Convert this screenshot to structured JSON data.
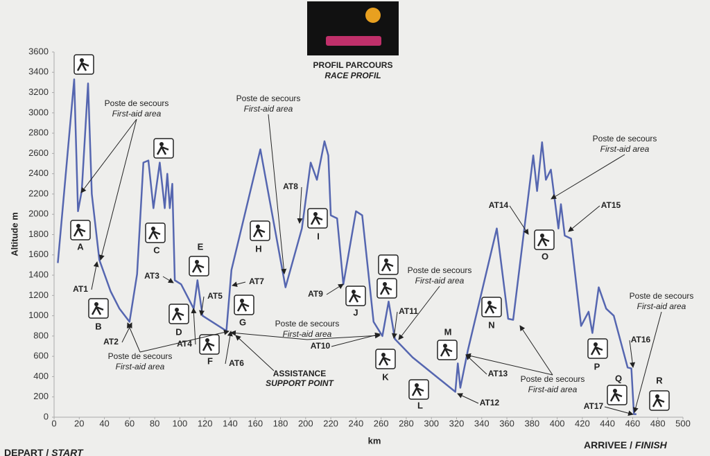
{
  "chart_data": {
    "type": "line",
    "title": "PROFIL PARCOURS",
    "subtitle": "RACE PROFIL",
    "x_label": "km",
    "y_label": "Altitude m",
    "start_label": {
      "fr": "DEPART /",
      "en": "START"
    },
    "finish_label": {
      "fr": "ARRIVEE /",
      "en": "FINISH"
    },
    "color": "#5566b0",
    "x": [
      3,
      16,
      19,
      22,
      27,
      30,
      36,
      45,
      52,
      60,
      66,
      71,
      75,
      79,
      84,
      88,
      90,
      92,
      94,
      96,
      101,
      111,
      114,
      118,
      137,
      141,
      164,
      184,
      197,
      204,
      209,
      215,
      218,
      220,
      225,
      230,
      240,
      245,
      254,
      261,
      266,
      271,
      285,
      302,
      319,
      321,
      323,
      329,
      352,
      361,
      365,
      381,
      384,
      388,
      391,
      395,
      401,
      403,
      406,
      411,
      419,
      425,
      428,
      433,
      439,
      445,
      456,
      459,
      461,
      463
    ],
    "values": [
      1520,
      3330,
      2030,
      2230,
      3290,
      2200,
      1550,
      1240,
      1070,
      940,
      1410,
      2510,
      2530,
      2060,
      2510,
      2060,
      2400,
      2060,
      2300,
      1350,
      1310,
      1070,
      1350,
      1000,
      850,
      1450,
      2640,
      1280,
      1860,
      2510,
      2340,
      2720,
      2580,
      1990,
      1960,
      1310,
      2030,
      1990,
      940,
      800,
      1140,
      770,
      590,
      420,
      250,
      530,
      290,
      660,
      1860,
      970,
      960,
      2580,
      2230,
      2710,
      2340,
      2440,
      1860,
      2100,
      1790,
      1760,
      900,
      1040,
      830,
      1280,
      1070,
      1000,
      490,
      480,
      30,
      30
    ],
    "xlim": [
      0,
      500
    ],
    "ylim": [
      0,
      3600
    ],
    "xticks": [
      0,
      20,
      40,
      60,
      80,
      100,
      120,
      140,
      160,
      180,
      200,
      220,
      240,
      260,
      280,
      300,
      320,
      340,
      360,
      380,
      400,
      420,
      440,
      460,
      480,
      500
    ],
    "yticks": [
      0,
      200,
      400,
      600,
      800,
      1000,
      1200,
      1400,
      1600,
      1800,
      2000,
      2200,
      2400,
      2600,
      2800,
      3000,
      3200,
      3400,
      3600
    ],
    "grid": false,
    "stages": [
      "A",
      "B",
      "C",
      "D",
      "E",
      "F",
      "G",
      "H",
      "I",
      "J",
      "K",
      "L",
      "M",
      "N",
      "O",
      "P",
      "Q",
      "R"
    ],
    "transitions": [
      "AT1",
      "AT2",
      "AT3",
      "AT4",
      "AT5",
      "AT6",
      "AT7",
      "AT8",
      "AT9",
      "AT10",
      "AT11",
      "AT12",
      "AT13",
      "AT14",
      "AT15",
      "AT16",
      "AT17"
    ],
    "first_aid": [
      {
        "fr": "Poste de secours",
        "en": "First-aid area"
      },
      {
        "fr": "Poste de secours",
        "en": "First-aid area"
      },
      {
        "fr": "Poste de secours",
        "en": "First-aid area"
      },
      {
        "fr": "Poste de secours",
        "en": "First-aid area"
      },
      {
        "fr": "Poste de secours",
        "en": "First-aid area"
      },
      {
        "fr": "Poste de secours",
        "en": "First-aid area"
      },
      {
        "fr": "Poste de secours",
        "en": "First-aid area"
      },
      {
        "fr": "Poste de secours",
        "en": "First-aid area"
      }
    ],
    "assistance": {
      "fr": "ASSISTANCE",
      "en": "SUPPORT POINT"
    }
  }
}
